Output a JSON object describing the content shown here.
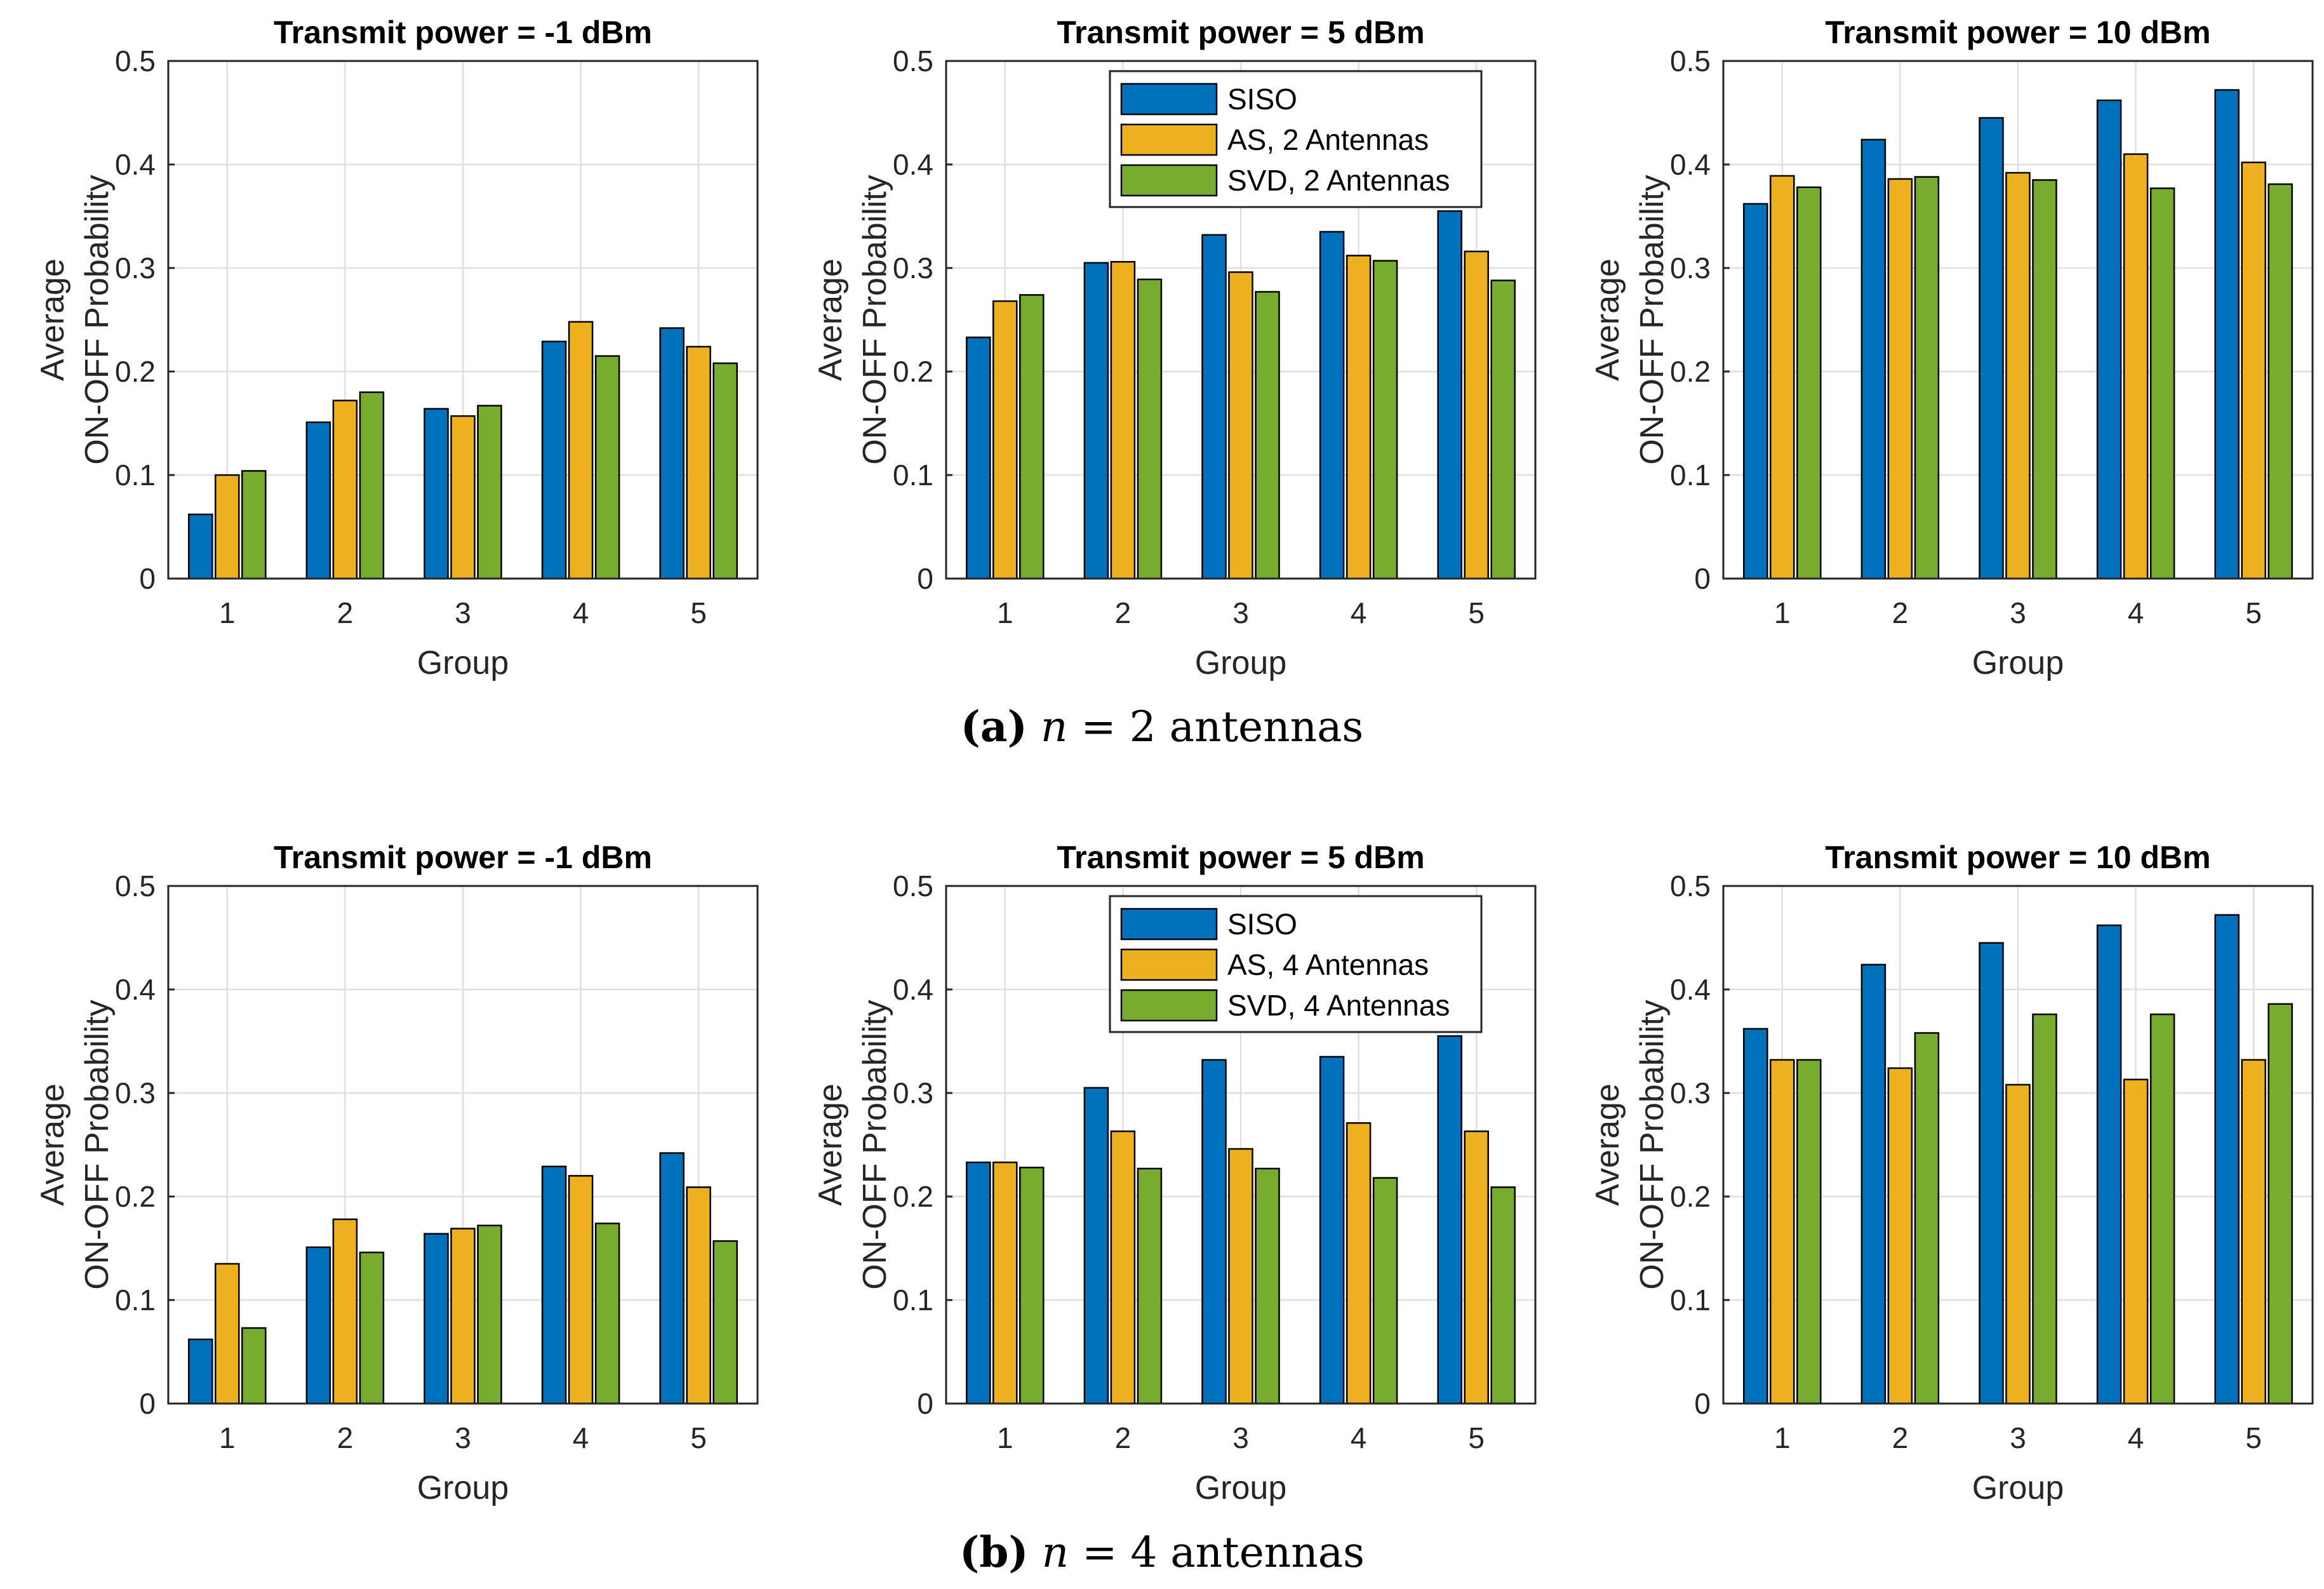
{
  "palette": [
    "#0072BD",
    "#EDB120",
    "#77AC30"
  ],
  "figure_rows": [
    {
      "caption_label": "(a)",
      "caption_var": "n",
      "caption_rest": " = 2 antennas",
      "legend": [
        "SISO",
        "AS, 2 Antennas",
        "SVD, 2 Antennas"
      ]
    },
    {
      "caption_label": "(b)",
      "caption_var": "n",
      "caption_rest": " = 4 antennas",
      "legend": [
        "SISO",
        "AS, 4 Antennas",
        "SVD, 4 Antennas"
      ]
    }
  ],
  "chart_data": [
    {
      "type": "bar",
      "title": "Transmit power = -1 dBm",
      "xlabel": "Group",
      "ylabel": [
        "Average",
        "ON-OFF Probability"
      ],
      "categories": [
        "1",
        "2",
        "3",
        "4",
        "5"
      ],
      "ylim": [
        0,
        0.5
      ],
      "yticks": [
        "0",
        "0.1",
        "0.2",
        "0.3",
        "0.4",
        "0.5"
      ],
      "grid": true,
      "series": [
        {
          "name": "SISO",
          "values": [
            0.062,
            0.151,
            0.164,
            0.229,
            0.242
          ]
        },
        {
          "name": "AS, 2 Antennas",
          "values": [
            0.1,
            0.172,
            0.157,
            0.248,
            0.224
          ]
        },
        {
          "name": "SVD, 2 Antennas",
          "values": [
            0.104,
            0.18,
            0.167,
            0.215,
            0.208
          ]
        }
      ]
    },
    {
      "type": "bar",
      "title": "Transmit power = 5 dBm",
      "xlabel": "Group",
      "ylabel": [
        "Average",
        "ON-OFF Probability"
      ],
      "categories": [
        "1",
        "2",
        "3",
        "4",
        "5"
      ],
      "ylim": [
        0,
        0.5
      ],
      "yticks": [
        "0",
        "0.1",
        "0.2",
        "0.3",
        "0.4",
        "0.5"
      ],
      "grid": true,
      "legend": "top-center",
      "series": [
        {
          "name": "SISO",
          "values": [
            0.233,
            0.305,
            0.332,
            0.335,
            0.355
          ]
        },
        {
          "name": "AS, 2 Antennas",
          "values": [
            0.268,
            0.306,
            0.296,
            0.312,
            0.316
          ]
        },
        {
          "name": "SVD, 2 Antennas",
          "values": [
            0.274,
            0.289,
            0.277,
            0.307,
            0.288
          ]
        }
      ]
    },
    {
      "type": "bar",
      "title": "Transmit power = 10 dBm",
      "xlabel": "Group",
      "ylabel": [
        "Average",
        "ON-OFF Probability"
      ],
      "categories": [
        "1",
        "2",
        "3",
        "4",
        "5"
      ],
      "ylim": [
        0,
        0.5
      ],
      "yticks": [
        "0",
        "0.1",
        "0.2",
        "0.3",
        "0.4",
        "0.5"
      ],
      "grid": true,
      "series": [
        {
          "name": "SISO",
          "values": [
            0.362,
            0.424,
            0.445,
            0.462,
            0.472
          ]
        },
        {
          "name": "AS, 2 Antennas",
          "values": [
            0.389,
            0.386,
            0.392,
            0.41,
            0.402
          ]
        },
        {
          "name": "SVD, 2 Antennas",
          "values": [
            0.378,
            0.388,
            0.385,
            0.377,
            0.381
          ]
        }
      ]
    },
    {
      "type": "bar",
      "title": "Transmit power = -1 dBm",
      "xlabel": "Group",
      "ylabel": [
        "Average",
        "ON-OFF Probability"
      ],
      "categories": [
        "1",
        "2",
        "3",
        "4",
        "5"
      ],
      "ylim": [
        0,
        0.5
      ],
      "yticks": [
        "0",
        "0.1",
        "0.2",
        "0.3",
        "0.4",
        "0.5"
      ],
      "grid": true,
      "series": [
        {
          "name": "SISO",
          "values": [
            0.062,
            0.151,
            0.164,
            0.229,
            0.242
          ]
        },
        {
          "name": "AS, 4 Antennas",
          "values": [
            0.135,
            0.178,
            0.169,
            0.22,
            0.209
          ]
        },
        {
          "name": "SVD, 4 Antennas",
          "values": [
            0.073,
            0.146,
            0.172,
            0.174,
            0.157
          ]
        }
      ]
    },
    {
      "type": "bar",
      "title": "Transmit power = 5 dBm",
      "xlabel": "Group",
      "ylabel": [
        "Average",
        "ON-OFF Probability"
      ],
      "categories": [
        "1",
        "2",
        "3",
        "4",
        "5"
      ],
      "ylim": [
        0,
        0.5
      ],
      "yticks": [
        "0",
        "0.1",
        "0.2",
        "0.3",
        "0.4",
        "0.5"
      ],
      "grid": true,
      "legend": "top-center",
      "series": [
        {
          "name": "SISO",
          "values": [
            0.233,
            0.305,
            0.332,
            0.335,
            0.355
          ]
        },
        {
          "name": "AS, 4 Antennas",
          "values": [
            0.233,
            0.263,
            0.246,
            0.271,
            0.263
          ]
        },
        {
          "name": "SVD, 4 Antennas",
          "values": [
            0.228,
            0.227,
            0.227,
            0.218,
            0.209
          ]
        }
      ]
    },
    {
      "type": "bar",
      "title": "Transmit power = 10 dBm",
      "xlabel": "Group",
      "ylabel": [
        "Average",
        "ON-OFF Probability"
      ],
      "categories": [
        "1",
        "2",
        "3",
        "4",
        "5"
      ],
      "ylim": [
        0,
        0.5
      ],
      "yticks": [
        "0",
        "0.1",
        "0.2",
        "0.3",
        "0.4",
        "0.5"
      ],
      "grid": true,
      "series": [
        {
          "name": "SISO",
          "values": [
            0.362,
            0.424,
            0.445,
            0.462,
            0.472
          ]
        },
        {
          "name": "AS, 4 Antennas",
          "values": [
            0.332,
            0.324,
            0.308,
            0.313,
            0.332
          ]
        },
        {
          "name": "SVD, 4 Antennas",
          "values": [
            0.332,
            0.358,
            0.376,
            0.376,
            0.386
          ]
        }
      ]
    }
  ]
}
